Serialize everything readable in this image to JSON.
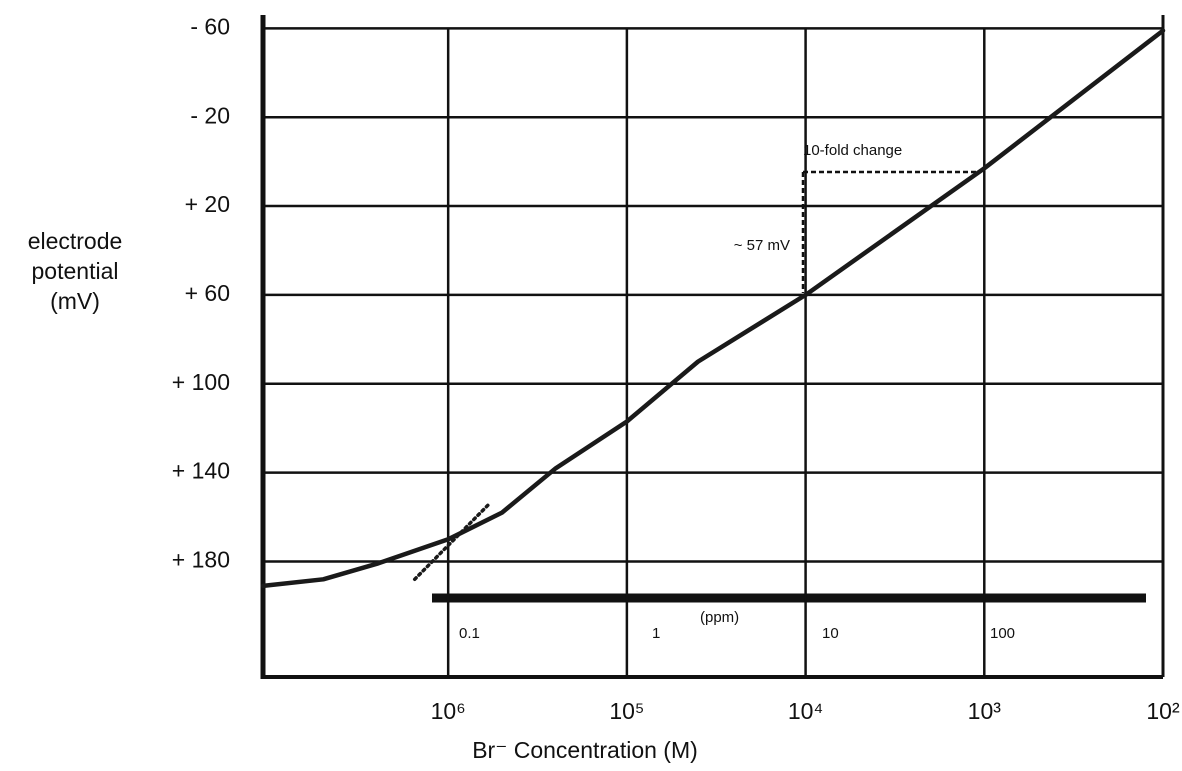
{
  "chart_data": {
    "type": "line",
    "xlabel": "Br⁻ Concentration (M)",
    "ylabel": [
      "electrode",
      "potential",
      "(mV)"
    ],
    "log_x": true,
    "grid": true,
    "xlim": [
      9.2e-08,
      0.01
    ],
    "ylim": [
      232,
      -66
    ],
    "xticks": [
      {
        "value": 1e-06,
        "label": "10⁶"
      },
      {
        "value": 1e-05,
        "label": "10⁵"
      },
      {
        "value": 0.0001,
        "label": "10⁴"
      },
      {
        "value": 0.001,
        "label": "10³"
      },
      {
        "value": 0.01,
        "label": "10²"
      }
    ],
    "yticks": [
      {
        "value": -60,
        "label": "- 60"
      },
      {
        "value": -20,
        "label": "- 20"
      },
      {
        "value": 20,
        "label": "+ 20"
      },
      {
        "value": 60,
        "label": "+ 60"
      },
      {
        "value": 100,
        "label": "+ 100"
      },
      {
        "value": 140,
        "label": "+ 140"
      },
      {
        "value": 180,
        "label": "+ 180"
      }
    ],
    "series": [
      {
        "color": "#1a1a1a",
        "style": "solid",
        "x": [
          9.2e-08,
          2e-07,
          4e-07,
          1e-06,
          2e-06,
          4e-06,
          1e-05,
          2.5e-05,
          0.0001,
          0.001,
          0.01
        ],
        "values": [
          191,
          188,
          181,
          170,
          158,
          138,
          117,
          90,
          60,
          3,
          -59
        ]
      },
      {
        "color": "#1a1a1a",
        "style": "dotted",
        "x": [
          6.5e-07,
          1.7e-06
        ],
        "values": [
          188,
          154
        ]
      }
    ],
    "annotations": [
      "10-fold change",
      "~ 57 mV"
    ],
    "ppm_scale": {
      "unit": "(ppm)",
      "labels": [
        "0.1",
        "1",
        "10",
        "100"
      ]
    }
  }
}
